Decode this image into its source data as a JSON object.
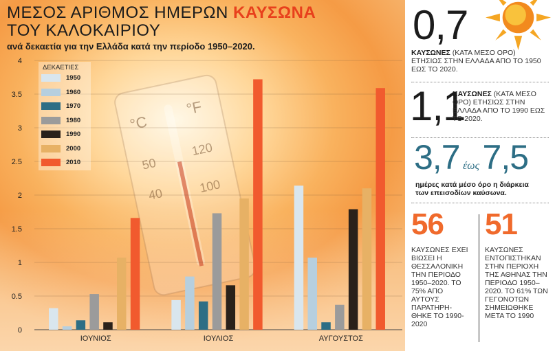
{
  "title": {
    "line1_prefix": "ΜΕΣΟΣ ΑΡΙΘΜΟΣ ΗΜΕΡΩΝ",
    "line1_bold": "ΚΑΥΣΩΝΑ",
    "line2": "ΤΟΥ ΚΑΛΟΚΑΙΡΙΟΥ",
    "subtitle": "ανά δεκαετία για την Ελλάδα κατά την περίοδο 1950–2020."
  },
  "chart_data": {
    "type": "bar",
    "categories": [
      "ΙΟΥΝΙΟΣ",
      "ΙΟΥΛΙΟΣ",
      "ΑΥΓΟΥΣΤΟΣ"
    ],
    "legend_title": "ΔΕΚΑΕΤΙΕΣ",
    "legend_position": "top-left",
    "ylim": [
      0,
      4
    ],
    "yticks": [
      "0",
      "0.5",
      "1",
      "1.5",
      "2",
      "2.5",
      "3",
      "3.5",
      "4"
    ],
    "grid": true,
    "series": [
      {
        "name": "1950",
        "color": "#d9e6ee",
        "values": [
          0.32,
          0.44,
          2.14
        ]
      },
      {
        "name": "1960",
        "color": "#b6cfdf",
        "values": [
          0.05,
          0.79,
          1.07
        ]
      },
      {
        "name": "1970",
        "color": "#2d6e85",
        "values": [
          0.14,
          0.42,
          0.11
        ]
      },
      {
        "name": "1980",
        "color": "#9b9b9b",
        "values": [
          0.53,
          1.73,
          0.37
        ]
      },
      {
        "name": "1990",
        "color": "#2a211a",
        "values": [
          0.11,
          0.66,
          1.79
        ]
      },
      {
        "name": "2000",
        "color": "#e7b165",
        "values": [
          1.07,
          1.95,
          2.1
        ]
      },
      {
        "name": "2010",
        "color": "#f15a2e",
        "values": [
          1.66,
          3.72,
          3.59
        ]
      }
    ]
  },
  "panel": {
    "stat1": {
      "value": "0,7",
      "bold": "ΚΑΥΣΩΝΕΣ",
      "text": "(ΚΑΤΑ ΜΕΣΟ ΟΡΟ) ΕΤΗΣΙΩΣ ΣΤΗΝ ΕΛΛΑΔΑ ΑΠΟ ΤΟ 1950 ΕΩΣ ΤΟ 2020."
    },
    "stat2": {
      "value": "1,1",
      "bold": "ΚΑΥΣΩΝΕΣ",
      "text": "(ΚΑΤΑ ΜΕΣΟ ΟΡΟ) ΕΤΗΣΙΩΣ ΣΤΗΝ ΕΛΛΑΔΑ ΑΠΟ ΤΟ 1990 ΕΩΣ ΤΟ 2020."
    },
    "stat3": {
      "from": "3,7",
      "word": "έως",
      "to": "7,5",
      "text": "ημέρες κατά μέσο όρο η διάρκεια των επεισοδίων καύσωνα."
    },
    "stat4": {
      "value": "56",
      "text": "ΚΑΥΣΩΝΕΣ ΕΧΕΙ ΒΙΩΣΕΙ Η ΘΕΣΣΑΛΟΝΙΚΗ ΤΗΝ ΠΕΡΙΟΔΟ 1950–2020. ΤΟ 75% ΑΠΟ ΑΥΤΟΥΣ ΠΑΡΑΤΗΡΗ- ΘΗΚΕ ΤΟ 1990-2020"
    },
    "stat5": {
      "value": "51",
      "text": "ΚΑΥΣΩΝΕΣ ΕΝΤΟΠΙΣΤΗΚΑΝ ΣΤΗΝ ΠΕΡΙΟΧΗ ΤΗΣ ΑΘΗΝΑΣ ΤΗΝ ΠΕΡΙΟΔΟ 1950–2020. ΤΟ 61% ΤΩΝ ΓΕΓΟΝΟΤΩΝ ΣΗΜΕΙΩΘΗΚΕ ΜΕΤΑ ΤΟ 1990"
    }
  },
  "thermometer": {
    "c": "°C",
    "f": "°F",
    "c_vals": [
      "50",
      "40"
    ],
    "f_vals": [
      "120",
      "100"
    ]
  }
}
